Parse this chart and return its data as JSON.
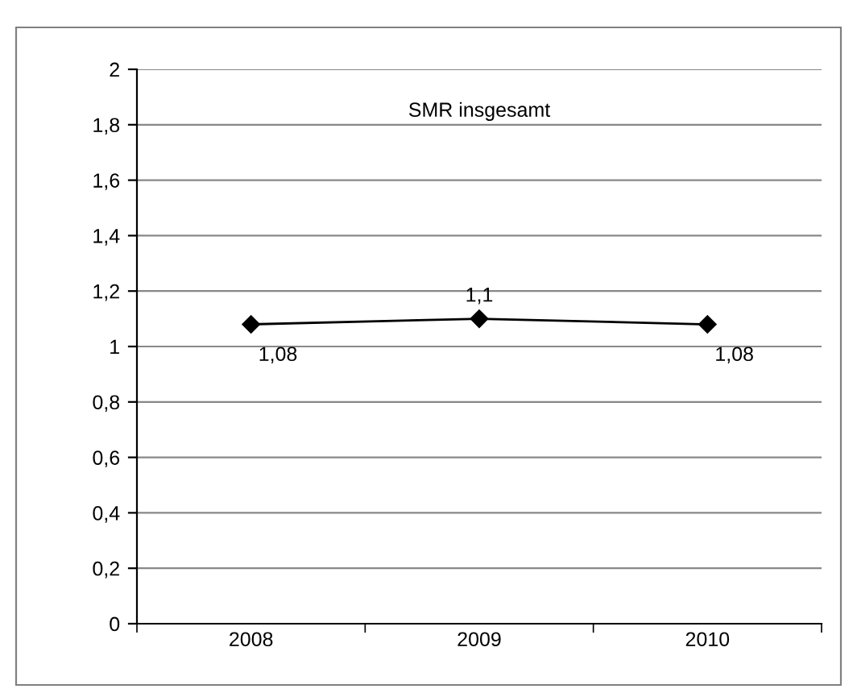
{
  "chart_data": {
    "type": "line",
    "title": "SMR insgesamt",
    "categories": [
      "2008",
      "2009",
      "2010"
    ],
    "series": [
      {
        "color": "#000000",
        "values": [
          1.08,
          1.1,
          1.08
        ],
        "value_labels": [
          "1,08",
          "1,1",
          "1,08"
        ]
      }
    ],
    "ylim": [
      0,
      2
    ],
    "yticks": [
      0,
      {
        "value": 0.2,
        "label": "0,2"
      },
      {
        "value": 0.4,
        "label": "0,4"
      },
      {
        "value": 0.6,
        "label": "0,6"
      },
      {
        "value": 0.8,
        "label": "0,8"
      },
      1,
      {
        "value": 1.2,
        "label": "1,2"
      },
      {
        "value": 1.4,
        "label": "1,4"
      },
      {
        "value": 1.6,
        "label": "1,6"
      },
      {
        "value": 1.8,
        "label": "1,8"
      },
      2
    ],
    "grid": "y",
    "marker": "diamond",
    "line_style": "solid"
  }
}
